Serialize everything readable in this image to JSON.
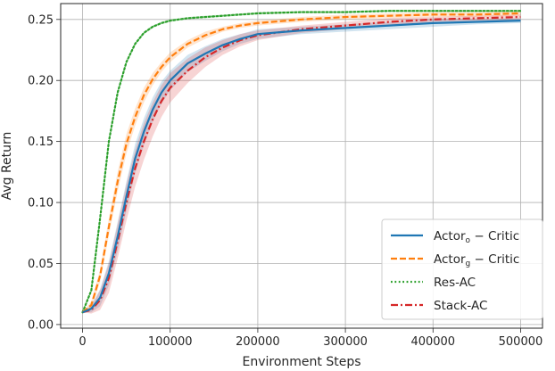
{
  "chart_data": {
    "type": "line",
    "xlabel": "Environment Steps",
    "ylabel": "Avg Return",
    "xlim": [
      -25000,
      525000
    ],
    "ylim": [
      -0.003,
      0.263
    ],
    "x_ticks": [
      0,
      100000,
      200000,
      300000,
      400000,
      500000
    ],
    "x_tick_labels": [
      "0",
      "100000",
      "200000",
      "300000",
      "400000",
      "500000"
    ],
    "y_ticks": [
      0.0,
      0.05,
      0.1,
      0.15,
      0.2,
      0.25
    ],
    "y_tick_labels": [
      "0.00",
      "0.05",
      "0.10",
      "0.15",
      "0.20",
      "0.25"
    ],
    "grid": true,
    "legend_position": "lower-right",
    "colors": {
      "blue": "#1f77b4",
      "orange": "#ff7f0e",
      "green": "#2ca02c",
      "red": "#d62728"
    },
    "series": [
      {
        "name": "Actor_o - Critic",
        "legend_main": "Actor",
        "legend_sub": "o",
        "legend_rest": " − Critic",
        "color": "#1f77b4",
        "style": "solid",
        "x": [
          0,
          10000,
          20000,
          30000,
          40000,
          50000,
          60000,
          70000,
          80000,
          90000,
          100000,
          120000,
          140000,
          160000,
          180000,
          200000,
          250000,
          300000,
          350000,
          400000,
          450000,
          500000
        ],
        "y": [
          0.01,
          0.013,
          0.022,
          0.042,
          0.072,
          0.105,
          0.136,
          0.158,
          0.176,
          0.19,
          0.2,
          0.214,
          0.222,
          0.229,
          0.234,
          0.238,
          0.241,
          0.243,
          0.245,
          0.247,
          0.248,
          0.249
        ],
        "band": [
          0.0,
          0.003,
          0.007,
          0.01,
          0.012,
          0.012,
          0.012,
          0.011,
          0.01,
          0.009,
          0.008,
          0.007,
          0.006,
          0.005,
          0.004,
          0.004,
          0.003,
          0.003,
          0.003,
          0.003,
          0.002,
          0.002
        ]
      },
      {
        "name": "Actor_g - Critic",
        "legend_main": "Actor",
        "legend_sub": "g",
        "legend_rest": " − Critic",
        "color": "#ff7f0e",
        "style": "dashed",
        "x": [
          0,
          10000,
          20000,
          30000,
          40000,
          50000,
          60000,
          70000,
          80000,
          90000,
          100000,
          120000,
          140000,
          160000,
          180000,
          200000,
          250000,
          300000,
          350000,
          400000,
          450000,
          500000
        ],
        "y": [
          0.01,
          0.016,
          0.04,
          0.08,
          0.117,
          0.148,
          0.17,
          0.188,
          0.201,
          0.211,
          0.219,
          0.23,
          0.237,
          0.242,
          0.245,
          0.247,
          0.25,
          0.252,
          0.253,
          0.254,
          0.254,
          0.255
        ],
        "band": [
          0.0,
          0.003,
          0.005,
          0.007,
          0.008,
          0.008,
          0.007,
          0.006,
          0.005,
          0.004,
          0.004,
          0.003,
          0.003,
          0.002,
          0.002,
          0.002,
          0.002,
          0.002,
          0.002,
          0.002,
          0.002,
          0.002
        ]
      },
      {
        "name": "Res-AC",
        "legend_main": "Res-AC",
        "legend_sub": "",
        "legend_rest": "",
        "color": "#2ca02c",
        "style": "dotted",
        "x": [
          0,
          10000,
          20000,
          30000,
          40000,
          50000,
          60000,
          70000,
          80000,
          90000,
          100000,
          120000,
          140000,
          160000,
          180000,
          200000,
          250000,
          300000,
          350000,
          400000,
          450000,
          500000
        ],
        "y": [
          0.01,
          0.028,
          0.087,
          0.15,
          0.19,
          0.215,
          0.23,
          0.239,
          0.244,
          0.247,
          0.249,
          0.251,
          0.252,
          0.253,
          0.254,
          0.255,
          0.256,
          0.256,
          0.257,
          0.257,
          0.257,
          0.257
        ],
        "band": [
          0.0,
          0.001,
          0.002,
          0.002,
          0.002,
          0.001,
          0.001,
          0.001,
          0.001,
          0.001,
          0.001,
          0.001,
          0.001,
          0.001,
          0.001,
          0.001,
          0.001,
          0.001,
          0.001,
          0.001,
          0.001,
          0.001
        ]
      },
      {
        "name": "Stack-AC",
        "legend_main": "Stack-AC",
        "legend_sub": "",
        "legend_rest": "",
        "color": "#d62728",
        "style": "dashdot",
        "x": [
          0,
          10000,
          20000,
          30000,
          40000,
          50000,
          60000,
          70000,
          80000,
          90000,
          100000,
          120000,
          140000,
          160000,
          180000,
          200000,
          250000,
          300000,
          350000,
          400000,
          450000,
          500000
        ],
        "y": [
          0.01,
          0.012,
          0.02,
          0.038,
          0.068,
          0.1,
          0.128,
          0.15,
          0.168,
          0.183,
          0.194,
          0.208,
          0.219,
          0.227,
          0.233,
          0.237,
          0.242,
          0.245,
          0.248,
          0.25,
          0.251,
          0.252
        ],
        "band": [
          0.0,
          0.003,
          0.008,
          0.012,
          0.014,
          0.015,
          0.015,
          0.015,
          0.014,
          0.013,
          0.012,
          0.01,
          0.008,
          0.006,
          0.005,
          0.004,
          0.003,
          0.003,
          0.003,
          0.002,
          0.002,
          0.002
        ]
      }
    ]
  }
}
